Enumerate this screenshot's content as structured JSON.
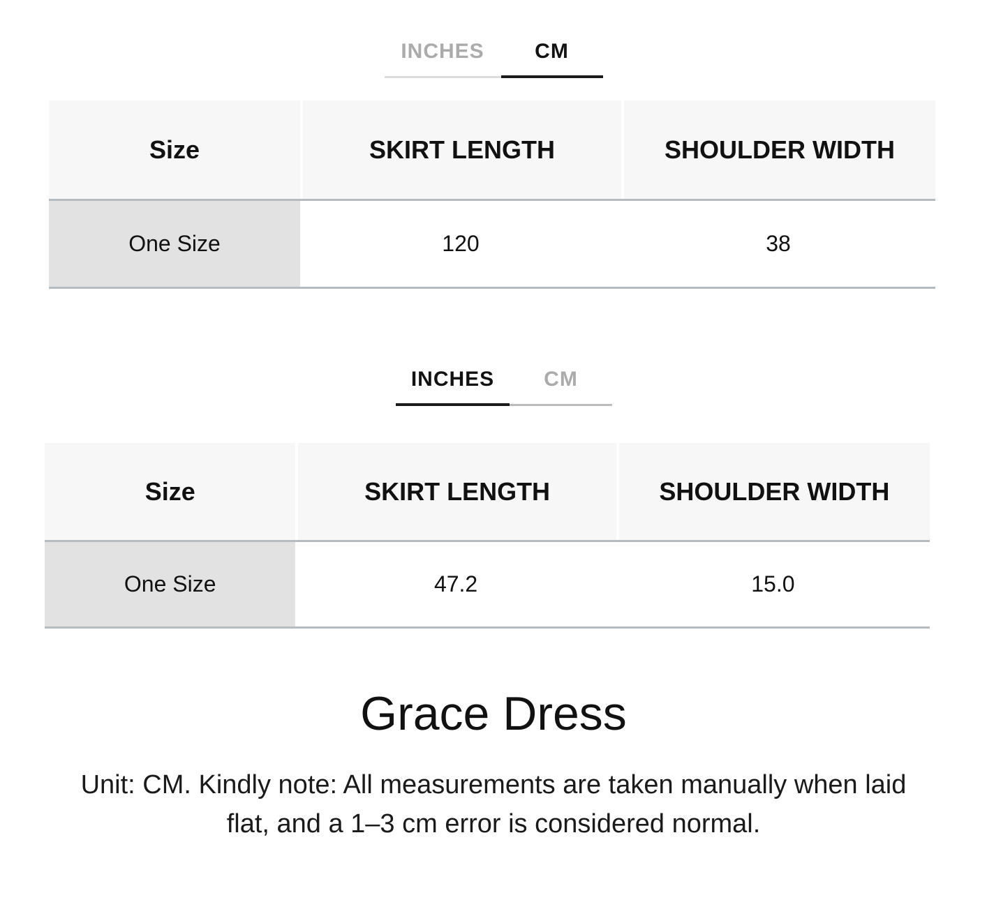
{
  "colors": {
    "active_tab_text": "#121212",
    "inactive_tab_text": "#ababab",
    "active_tab_underline": "#1a1a1a",
    "inactive_tab_underline": "#dcdcdc",
    "table_header_bg": "#f7f7f7",
    "size_label_cell_bg": "#e2e2e2",
    "table_border": "#b4bcc1"
  },
  "cm_section": {
    "tabs": [
      {
        "label": "INCHES",
        "active": false
      },
      {
        "label": "CM",
        "active": true
      }
    ],
    "table": {
      "headers": [
        "Size",
        "SKIRT LENGTH",
        "SHOULDER WIDTH"
      ],
      "rows": [
        {
          "size": "One Size",
          "skirt_length": "120",
          "shoulder_width": "38"
        }
      ]
    }
  },
  "inches_section": {
    "tabs": [
      {
        "label": "INCHES",
        "active": true
      },
      {
        "label": "CM",
        "active": false
      }
    ],
    "table": {
      "headers": [
        "Size",
        "SKIRT LENGTH",
        "SHOULDER WIDTH"
      ],
      "rows": [
        {
          "size": "One Size",
          "skirt_length": "47.2",
          "shoulder_width": "15.0"
        }
      ]
    }
  },
  "product_title": "Grace Dress",
  "note_lines": [
    "Unit: CM. Kindly note: All measurements are taken manually when laid",
    "flat, and a 1–3 cm error is considered normal."
  ]
}
